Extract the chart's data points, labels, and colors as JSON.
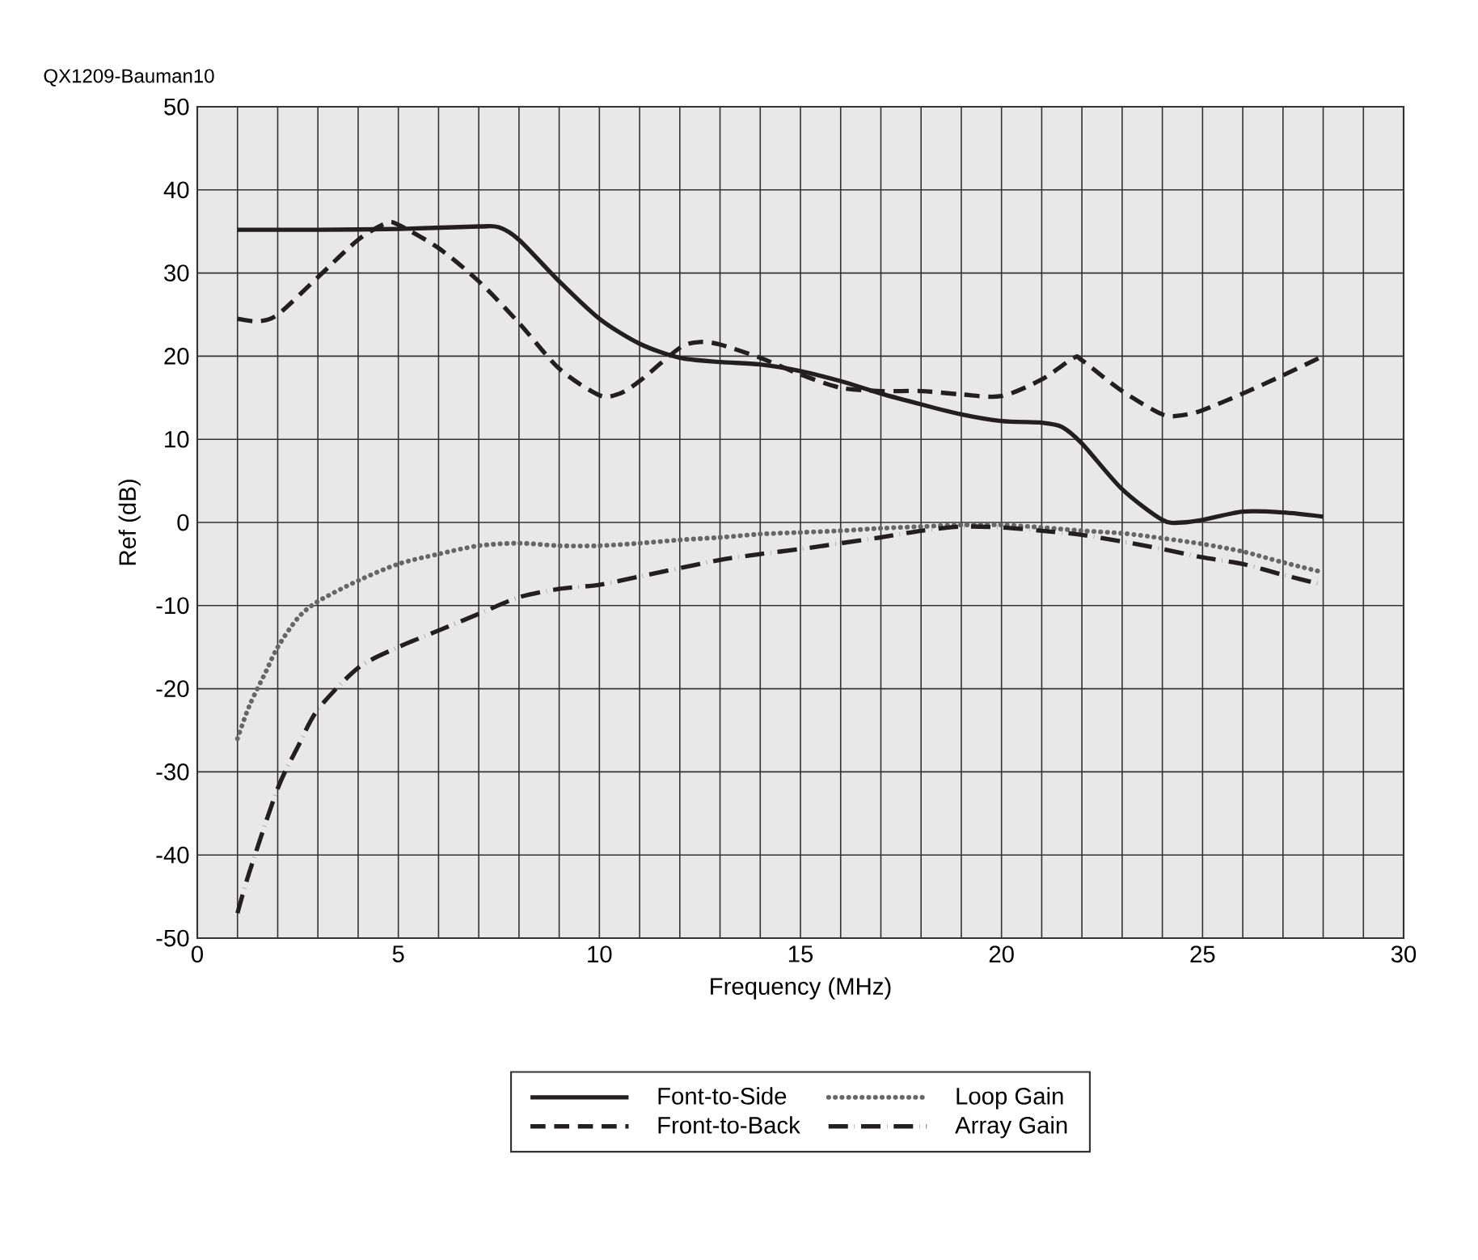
{
  "chart_data": {
    "type": "line",
    "xlabel": "Frequency (MHz)",
    "ylabel": "Ref (dB)",
    "annotations": [
      "QX1209-Bauman10"
    ],
    "xlim": [
      0,
      30
    ],
    "ylim": [
      -50,
      50
    ],
    "xticks": [
      0,
      5,
      10,
      15,
      20,
      25,
      30
    ],
    "yticks": [
      -50,
      -40,
      -30,
      -20,
      -10,
      0,
      10,
      20,
      30,
      40,
      50
    ],
    "grid": true,
    "legend": "bottom",
    "marker": "none",
    "series": [
      {
        "name": "Font-to-Side",
        "color": "#231f20",
        "line_style": "solid",
        "x": [
          1,
          3,
          5,
          7,
          7.5,
          8,
          9,
          10,
          11,
          12,
          13,
          14,
          15,
          16,
          17,
          18,
          19,
          20,
          21,
          21.5,
          22,
          23,
          24,
          24.5,
          25,
          26,
          27,
          28
        ],
        "values": [
          35.2,
          35.2,
          35.3,
          35.6,
          35.5,
          34,
          29,
          24.5,
          21.5,
          19.8,
          19.3,
          19,
          18.2,
          17,
          15.5,
          14.2,
          13,
          12.2,
          12,
          11.5,
          9.5,
          4,
          0.3,
          0,
          0.3,
          1.3,
          1.2,
          0.7
        ]
      },
      {
        "name": "Front-to-Back",
        "color": "#231f20",
        "line_style": "dashed",
        "x": [
          1,
          1.5,
          2,
          3,
          4,
          4.7,
          5,
          6,
          7,
          8,
          9,
          10,
          10.5,
          11,
          12,
          12.5,
          13,
          14,
          15,
          16,
          17,
          18,
          19,
          20,
          21,
          21.8,
          22,
          23,
          24,
          24.5,
          25,
          26,
          27,
          28
        ],
        "values": [
          24.5,
          24.2,
          25,
          29.5,
          34,
          36,
          35.8,
          33,
          29,
          24,
          18.5,
          15.3,
          15.5,
          17,
          21,
          21.7,
          21.4,
          19.8,
          17.8,
          16.2,
          15.8,
          15.8,
          15.4,
          15.2,
          17.2,
          19.8,
          19.5,
          15.8,
          13,
          12.9,
          13.5,
          15.5,
          17.7,
          20
        ]
      },
      {
        "name": "Loop Gain",
        "color": "#666666",
        "line_style": "dotted",
        "x": [
          1,
          1.3,
          1.7,
          2,
          2.5,
          3,
          4,
          5,
          6,
          7,
          8,
          9,
          10,
          11,
          12,
          13,
          14,
          15,
          16,
          17,
          18,
          19,
          20,
          21,
          22,
          23,
          24,
          25,
          26,
          27,
          28
        ],
        "values": [
          -26,
          -22,
          -18,
          -15,
          -11.5,
          -9.5,
          -7,
          -5,
          -3.8,
          -2.8,
          -2.5,
          -2.8,
          -2.8,
          -2.5,
          -2.1,
          -1.8,
          -1.4,
          -1.2,
          -1,
          -0.7,
          -0.5,
          -0.3,
          -0.3,
          -0.6,
          -1,
          -1.3,
          -1.9,
          -2.6,
          -3.5,
          -4.8,
          -6
        ]
      },
      {
        "name": "Array Gain",
        "color": "#231f20",
        "line_style": "dashdot",
        "x": [
          1,
          1.3,
          2,
          2.5,
          3,
          4,
          5,
          6,
          7,
          8,
          9,
          10,
          11,
          12,
          13,
          14,
          15,
          16,
          17,
          18,
          19,
          20,
          21,
          22,
          23,
          24,
          25,
          26,
          27,
          28
        ],
        "values": [
          -47,
          -42,
          -32,
          -27,
          -22.5,
          -17.5,
          -15,
          -13,
          -11,
          -9,
          -8,
          -7.5,
          -6.5,
          -5.5,
          -4.5,
          -3.8,
          -3.2,
          -2.5,
          -1.8,
          -1,
          -0.5,
          -0.6,
          -1,
          -1.5,
          -2.3,
          -3.2,
          -4.2,
          -5,
          -6.3,
          -7.5
        ]
      }
    ]
  }
}
